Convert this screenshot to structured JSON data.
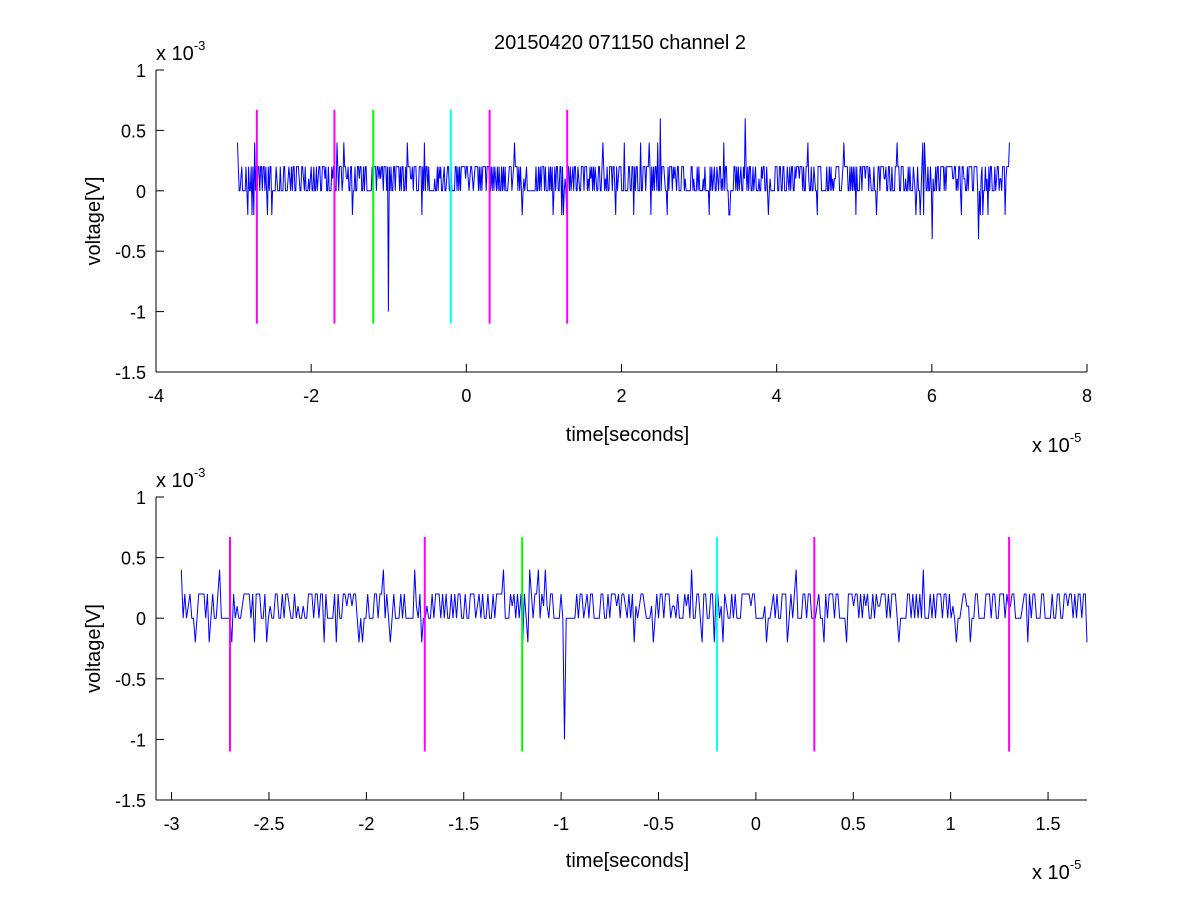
{
  "title": "20150420 071150 channel 2",
  "chart_data": [
    {
      "type": "line",
      "title": "20150420 071150 channel 2",
      "xlabel": "time[seconds]",
      "ylabel": "voltage[V]",
      "x_multiplier": "x 10",
      "x_exponent": "-5",
      "y_multiplier": "x 10",
      "y_exponent": "-3",
      "xlim": [
        -4,
        8
      ],
      "ylim": [
        -1.5,
        1
      ],
      "xticks": [
        -4,
        -2,
        0,
        2,
        4,
        6,
        8
      ],
      "xtick_labels": [
        "-4",
        "-2",
        "0",
        "2",
        "4",
        "6",
        "8"
      ],
      "yticks": [
        1,
        0.5,
        0,
        -0.5,
        -1,
        -1.5
      ],
      "ytick_labels": [
        "1",
        "0.5",
        "0",
        "-0.5",
        "-1",
        "-1.5"
      ],
      "grid": false,
      "signal": {
        "color": "#0000ff",
        "x_start": -2.95,
        "x_end": 7.0,
        "baseline_levels": [
          0,
          0.2
        ],
        "spikes": [
          {
            "x": -2.95,
            "y": 0.4
          },
          {
            "x": -1.0,
            "y": -1.0
          },
          {
            "x": 2.5,
            "y": 0.6
          },
          {
            "x": 3.6,
            "y": 0.6
          },
          {
            "x": 6.6,
            "y": -0.4
          },
          {
            "x": 6.0,
            "y": -0.4
          },
          {
            "x": 7.0,
            "y": 0.4
          }
        ]
      },
      "markers": [
        {
          "x": -2.7,
          "color": "#ff00ff",
          "y_top": 0.67,
          "y_bottom": -1.1
        },
        {
          "x": -1.7,
          "color": "#ff00ff",
          "y_top": 0.67,
          "y_bottom": -1.1
        },
        {
          "x": -1.2,
          "color": "#00ff00",
          "y_top": 0.67,
          "y_bottom": -1.1
        },
        {
          "x": -0.2,
          "color": "#00ffff",
          "y_top": 0.67,
          "y_bottom": -1.1
        },
        {
          "x": 0.3,
          "color": "#ff00ff",
          "y_top": 0.67,
          "y_bottom": -1.1
        },
        {
          "x": 1.3,
          "color": "#ff00ff",
          "y_top": 0.67,
          "y_bottom": -1.1
        }
      ]
    },
    {
      "type": "line",
      "xlabel": "time[seconds]",
      "ylabel": "voltage[V]",
      "x_multiplier": "x 10",
      "x_exponent": "-5",
      "y_multiplier": "x 10",
      "y_exponent": "-3",
      "xlim": [
        -3.08,
        1.7
      ],
      "ylim": [
        -1.5,
        1
      ],
      "xticks": [
        -3,
        -2.5,
        -2,
        -1.5,
        -1,
        -0.5,
        0,
        0.5,
        1,
        1.5
      ],
      "xtick_labels": [
        "-3",
        "-2.5",
        "-2",
        "-1.5",
        "-1",
        "-0.5",
        "0",
        "0.5",
        "1",
        "1.5"
      ],
      "yticks": [
        1,
        0.5,
        0,
        -0.5,
        -1,
        -1.5
      ],
      "ytick_labels": [
        "1",
        "0.5",
        "0",
        "-0.5",
        "-1",
        "-1.5"
      ],
      "grid": false,
      "signal": {
        "color": "#0000ff",
        "x_start": -2.95,
        "x_end": 1.7,
        "baseline_levels": [
          0,
          0.2
        ],
        "spikes": [
          {
            "x": -2.95,
            "y": 0.4
          },
          {
            "x": -2.88,
            "y": -0.2
          },
          {
            "x": -2.75,
            "y": 0.4
          },
          {
            "x": -1.2,
            "y": -0.2
          },
          {
            "x": -0.98,
            "y": -1.0
          },
          {
            "x": -1.08,
            "y": 0.4
          }
        ]
      },
      "markers": [
        {
          "x": -2.7,
          "color": "#ff00ff",
          "y_top": 0.67,
          "y_bottom": -1.1
        },
        {
          "x": -1.7,
          "color": "#ff00ff",
          "y_top": 0.67,
          "y_bottom": -1.1
        },
        {
          "x": -1.2,
          "color": "#00ff00",
          "y_top": 0.67,
          "y_bottom": -1.1
        },
        {
          "x": -0.2,
          "color": "#00ffff",
          "y_top": 0.67,
          "y_bottom": -1.1
        },
        {
          "x": 0.3,
          "color": "#ff00ff",
          "y_top": 0.67,
          "y_bottom": -1.1
        },
        {
          "x": 1.3,
          "color": "#ff00ff",
          "y_top": 0.67,
          "y_bottom": -1.1
        }
      ]
    }
  ]
}
